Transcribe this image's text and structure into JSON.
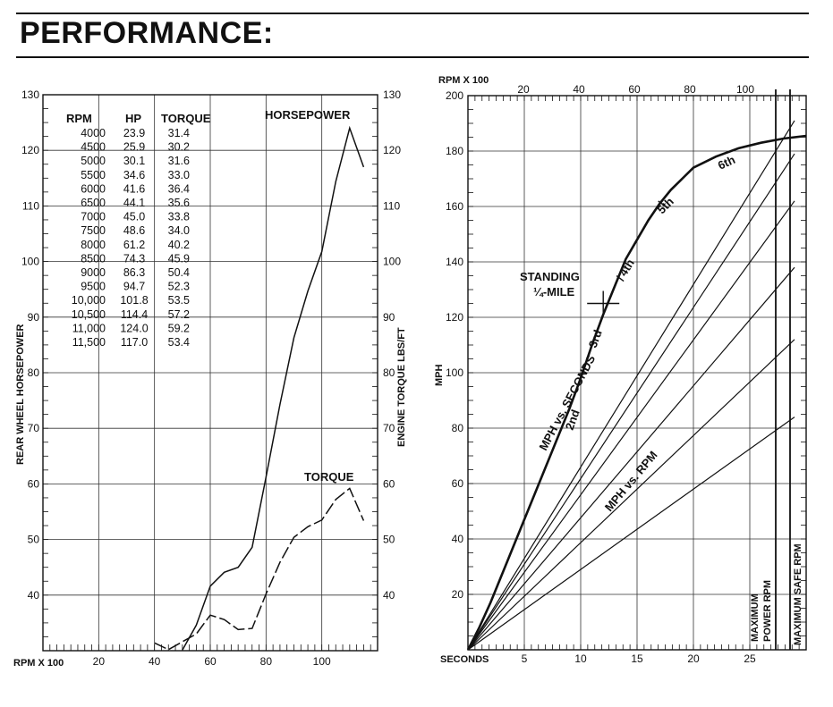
{
  "page": {
    "title": "PERFORMANCE:"
  },
  "chart_data": [
    {
      "type": "line",
      "ylabel": "REAR WHEEL HORSEPOWER",
      "y2label": "ENGINE TORQUE LBS/FT",
      "xlabel": "RPM X 100",
      "xlim": [
        0,
        120
      ],
      "ylim": [
        30,
        130
      ],
      "xticks": [
        20,
        40,
        60,
        80,
        100
      ],
      "yticks": [
        40,
        50,
        60,
        70,
        80,
        90,
        100,
        110,
        120,
        130
      ],
      "grid": true,
      "table": {
        "columns": [
          "RPM",
          "HP",
          "TORQUE"
        ],
        "rows": [
          [
            "4000",
            "23.9",
            "31.4"
          ],
          [
            "4500",
            "25.9",
            "30.2"
          ],
          [
            "5000",
            "30.1",
            "31.6"
          ],
          [
            "5500",
            "34.6",
            "33.0"
          ],
          [
            "6000",
            "41.6",
            "36.4"
          ],
          [
            "6500",
            "44.1",
            "35.6"
          ],
          [
            "7000",
            "45.0",
            "33.8"
          ],
          [
            "7500",
            "48.6",
            "34.0"
          ],
          [
            "8000",
            "61.2",
            "40.2"
          ],
          [
            "8500",
            "74.3",
            "45.9"
          ],
          [
            "9000",
            "86.3",
            "50.4"
          ],
          [
            "9500",
            "94.7",
            "52.3"
          ],
          [
            "10,000",
            "101.8",
            "53.5"
          ],
          [
            "10,500",
            "114.4",
            "57.2"
          ],
          [
            "11,000",
            "124.0",
            "59.2"
          ],
          [
            "11,500",
            "117.0",
            "53.4"
          ]
        ]
      },
      "series": [
        {
          "name": "HORSEPOWER",
          "style": "solid",
          "x": [
            40,
            45,
            50,
            55,
            60,
            65,
            70,
            75,
            80,
            85,
            90,
            95,
            100,
            105,
            110,
            115
          ],
          "y": [
            23.9,
            25.9,
            30.1,
            34.6,
            41.6,
            44.1,
            45.0,
            48.6,
            61.2,
            74.3,
            86.3,
            94.7,
            101.8,
            114.4,
            124.0,
            117.0
          ]
        },
        {
          "name": "TORQUE",
          "style": "dashed",
          "x": [
            40,
            45,
            50,
            55,
            60,
            65,
            70,
            75,
            80,
            85,
            90,
            95,
            100,
            105,
            110,
            115
          ],
          "y": [
            31.4,
            30.2,
            31.6,
            33.0,
            36.4,
            35.6,
            33.8,
            34.0,
            40.2,
            45.9,
            50.4,
            52.3,
            53.5,
            57.2,
            59.2,
            53.4
          ]
        }
      ]
    },
    {
      "type": "line",
      "ylabel": "MPH",
      "xlabel": "SECONDS",
      "x2label": "RPM X 100",
      "xlim": [
        0,
        30
      ],
      "ylim": [
        0,
        200
      ],
      "xticks": [
        5,
        10,
        15,
        20,
        25
      ],
      "x2ticks": [
        20,
        40,
        60,
        80,
        100
      ],
      "yticks": [
        20,
        40,
        60,
        80,
        100,
        120,
        140,
        160,
        180,
        200
      ],
      "grid": true,
      "mph_vs_seconds": {
        "label": "MPH vs. SECONDS",
        "x": [
          0,
          1,
          2,
          3,
          4,
          5,
          6,
          7,
          8,
          9,
          10,
          11,
          12,
          13,
          14,
          15,
          16,
          17,
          18,
          19,
          20,
          22,
          24,
          26,
          28,
          30
        ],
        "y": [
          0,
          8,
          17,
          27,
          37,
          47,
          57,
          67,
          77,
          87,
          98,
          110,
          121,
          131,
          141,
          148,
          155,
          161,
          166,
          170,
          174,
          178,
          181,
          183,
          184.5,
          185.5
        ]
      },
      "gear_labels": [
        "2nd",
        "3rd",
        "4th",
        "5th",
        "6th"
      ],
      "mph_vs_rpm": {
        "label": "MPH vs. RPM",
        "lines_mph_at_max_rpm": [
          84,
          112,
          138,
          162,
          179,
          191
        ]
      },
      "annotations": {
        "standing": "STANDING",
        "quarter": "¼-MILE",
        "standing_point": [
          12,
          125
        ],
        "max_power": [
          "MAXIMUM",
          "POWER RPM"
        ],
        "max_safe": "MAXIMUM SAFE RPM"
      }
    }
  ]
}
